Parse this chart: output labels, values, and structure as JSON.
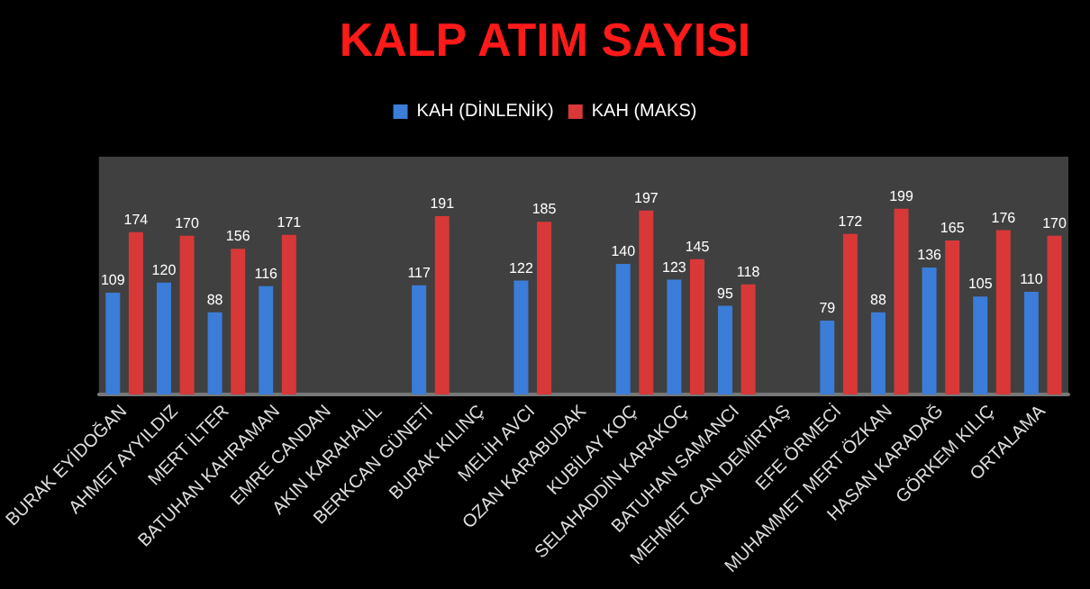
{
  "chart_data": {
    "type": "bar",
    "title": "KALP ATIM SAYISI",
    "categories": [
      "BURAK EYİDOĞAN",
      "AHMET AYYILDIZ",
      "MERT İLTER",
      "BATUHAN KAHRAMAN",
      "EMRE CANDAN",
      "AKIN KARAHALİL",
      "BERKCAN GÜNETİ",
      "BURAK KILINÇ",
      "MELİH AVCI",
      "OZAN KARABUDAK",
      "KUBİLAY KOÇ",
      "SELAHADDİN KARAKOÇ",
      "BATUHAN SAMANCI",
      "MEHMET CAN DEMİRTAŞ",
      "EFE ÖRMECİ",
      "MUHAMMET MERT ÖZKAN",
      "HASAN KARADAĞ",
      "GÖRKEM KILIÇ",
      "ORTALAMA"
    ],
    "series": [
      {
        "name": "KAH (DİNLENİK)",
        "color": "#3b7dd8",
        "values": [
          109,
          120,
          88,
          116,
          null,
          null,
          117,
          null,
          122,
          null,
          140,
          123,
          95,
          null,
          79,
          88,
          136,
          105,
          110
        ]
      },
      {
        "name": "KAH (MAKS)",
        "color": "#d83838",
        "values": [
          174,
          170,
          156,
          171,
          null,
          null,
          191,
          null,
          185,
          null,
          197,
          145,
          118,
          null,
          172,
          199,
          165,
          176,
          170
        ]
      }
    ],
    "data_labels": true,
    "legend": "top",
    "tick_labels": "x"
  }
}
